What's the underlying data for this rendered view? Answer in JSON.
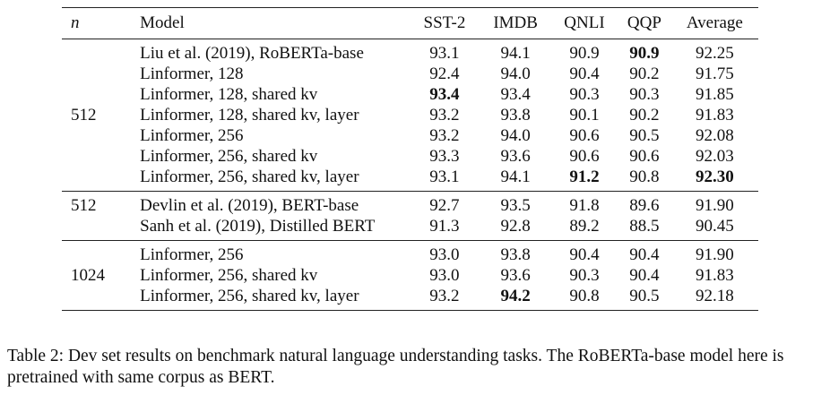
{
  "table": {
    "headers": {
      "n": "n",
      "model": "Model",
      "sst2": "SST-2",
      "imdb": "IMDB",
      "qnli": "QNLI",
      "qqp": "QQP",
      "average": "Average"
    },
    "groups": [
      {
        "n": "512",
        "rows": [
          {
            "model": "Liu et al. (2019), RoBERTa-base",
            "sst2": "93.1",
            "imdb": "94.1",
            "qnli": "90.9",
            "qqp": "90.9",
            "average": "92.25",
            "bold": [
              "qqp"
            ]
          },
          {
            "model": "Linformer, 128",
            "sst2": "92.4",
            "imdb": "94.0",
            "qnli": "90.4",
            "qqp": "90.2",
            "average": "91.75",
            "bold": []
          },
          {
            "model": "Linformer, 128, shared kv",
            "sst2": "93.4",
            "imdb": "93.4",
            "qnli": "90.3",
            "qqp": "90.3",
            "average": "91.85",
            "bold": [
              "sst2"
            ]
          },
          {
            "model": "Linformer, 128, shared kv, layer",
            "sst2": "93.2",
            "imdb": "93.8",
            "qnli": "90.1",
            "qqp": "90.2",
            "average": "91.83",
            "bold": []
          },
          {
            "model": "Linformer, 256",
            "sst2": "93.2",
            "imdb": "94.0",
            "qnli": "90.6",
            "qqp": "90.5",
            "average": "92.08",
            "bold": []
          },
          {
            "model": "Linformer, 256, shared kv",
            "sst2": "93.3",
            "imdb": "93.6",
            "qnli": "90.6",
            "qqp": "90.6",
            "average": "92.03",
            "bold": []
          },
          {
            "model": "Linformer, 256, shared kv, layer",
            "sst2": "93.1",
            "imdb": "94.1",
            "qnli": "91.2",
            "qqp": "90.8",
            "average": "92.30",
            "bold": [
              "qnli",
              "average"
            ]
          }
        ]
      },
      {
        "n": "512",
        "rows": [
          {
            "model": "Devlin et al. (2019), BERT-base",
            "sst2": "92.7",
            "imdb": "93.5",
            "qnli": "91.8",
            "qqp": "89.6",
            "average": "91.90",
            "bold": []
          },
          {
            "model": "Sanh et al. (2019), Distilled BERT",
            "sst2": "91.3",
            "imdb": "92.8",
            "qnli": "89.2",
            "qqp": "88.5",
            "average": "90.45",
            "bold": []
          }
        ]
      },
      {
        "n": "1024",
        "rows": [
          {
            "model": "Linformer, 256",
            "sst2": "93.0",
            "imdb": "93.8",
            "qnli": "90.4",
            "qqp": "90.4",
            "average": "91.90",
            "bold": []
          },
          {
            "model": "Linformer, 256, shared kv",
            "sst2": "93.0",
            "imdb": "93.6",
            "qnli": "90.3",
            "qqp": "90.4",
            "average": "91.83",
            "bold": []
          },
          {
            "model": "Linformer, 256, shared kv, layer",
            "sst2": "93.2",
            "imdb": "94.2",
            "qnli": "90.8",
            "qqp": "90.5",
            "average": "92.18",
            "bold": [
              "imdb"
            ]
          }
        ]
      }
    ]
  },
  "caption": "Table 2: Dev set results on benchmark natural language understanding tasks. The RoBERTa-base model here is pretrained with same corpus as BERT."
}
